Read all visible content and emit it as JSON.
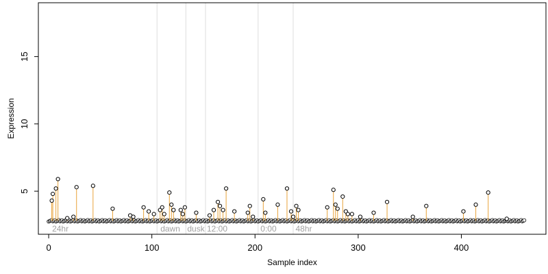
{
  "chart_data": {
    "type": "scatter",
    "title": "",
    "xlabel": "Sample index",
    "ylabel": "Expression",
    "xlim": [
      -10,
      482
    ],
    "ylim": [
      1.8,
      19.0
    ],
    "x_ticks": [
      0,
      100,
      200,
      300,
      400
    ],
    "y_ticks": [
      5,
      10,
      15
    ],
    "baseline": 2.8,
    "grid": false,
    "legend": "none",
    "colors": {
      "stem": "#e8a33a",
      "point_fill": "#ffffff",
      "point_stroke": "#000000",
      "divider": "#dddddd",
      "condition_text": "#a0a0a0",
      "baseline_band": "#5566aa"
    },
    "condition_dividers": [
      105,
      133,
      152,
      203,
      237
    ],
    "condition_labels": [
      {
        "x": 2,
        "text": "24hr"
      },
      {
        "x": 107,
        "text": "dawn"
      },
      {
        "x": 133,
        "text": "dusk"
      },
      {
        "x": 152,
        "text": "12:00"
      },
      {
        "x": 204,
        "text": "0:00"
      },
      {
        "x": 238,
        "text": "48hr"
      }
    ],
    "points": [
      {
        "x": 3,
        "y": 4.3
      },
      {
        "x": 4,
        "y": 4.8
      },
      {
        "x": 7,
        "y": 5.2
      },
      {
        "x": 9,
        "y": 5.9
      },
      {
        "x": 18,
        "y": 3.0
      },
      {
        "x": 24,
        "y": 3.1
      },
      {
        "x": 27,
        "y": 5.3
      },
      {
        "x": 43,
        "y": 5.4
      },
      {
        "x": 62,
        "y": 3.7
      },
      {
        "x": 79,
        "y": 3.2
      },
      {
        "x": 82,
        "y": 3.1
      },
      {
        "x": 92,
        "y": 3.8
      },
      {
        "x": 97,
        "y": 3.5
      },
      {
        "x": 102,
        "y": 3.3
      },
      {
        "x": 108,
        "y": 3.6
      },
      {
        "x": 110,
        "y": 3.8
      },
      {
        "x": 112,
        "y": 3.3
      },
      {
        "x": 117,
        "y": 4.9
      },
      {
        "x": 119,
        "y": 4.0
      },
      {
        "x": 121,
        "y": 3.6
      },
      {
        "x": 128,
        "y": 3.6
      },
      {
        "x": 130,
        "y": 3.3
      },
      {
        "x": 132,
        "y": 3.8
      },
      {
        "x": 143,
        "y": 3.4
      },
      {
        "x": 156,
        "y": 3.2
      },
      {
        "x": 160,
        "y": 3.6
      },
      {
        "x": 164,
        "y": 4.2
      },
      {
        "x": 166,
        "y": 3.9
      },
      {
        "x": 169,
        "y": 3.6
      },
      {
        "x": 172,
        "y": 5.2
      },
      {
        "x": 180,
        "y": 3.5
      },
      {
        "x": 193,
        "y": 3.4
      },
      {
        "x": 195,
        "y": 3.9
      },
      {
        "x": 198,
        "y": 3.1
      },
      {
        "x": 208,
        "y": 4.4
      },
      {
        "x": 210,
        "y": 3.4
      },
      {
        "x": 222,
        "y": 4.0
      },
      {
        "x": 231,
        "y": 5.2
      },
      {
        "x": 235,
        "y": 3.5
      },
      {
        "x": 237,
        "y": 3.1
      },
      {
        "x": 240,
        "y": 3.9
      },
      {
        "x": 242,
        "y": 3.6
      },
      {
        "x": 270,
        "y": 3.8
      },
      {
        "x": 276,
        "y": 5.1
      },
      {
        "x": 278,
        "y": 4.0
      },
      {
        "x": 280,
        "y": 3.7
      },
      {
        "x": 285,
        "y": 4.6
      },
      {
        "x": 288,
        "y": 3.5
      },
      {
        "x": 290,
        "y": 3.3
      },
      {
        "x": 294,
        "y": 3.3
      },
      {
        "x": 302,
        "y": 3.1
      },
      {
        "x": 315,
        "y": 3.4
      },
      {
        "x": 328,
        "y": 4.2
      },
      {
        "x": 353,
        "y": 3.1
      },
      {
        "x": 366,
        "y": 3.9
      },
      {
        "x": 402,
        "y": 3.5
      },
      {
        "x": 414,
        "y": 4.0
      },
      {
        "x": 426,
        "y": 4.9
      },
      {
        "x": 444,
        "y": 2.95
      }
    ]
  }
}
